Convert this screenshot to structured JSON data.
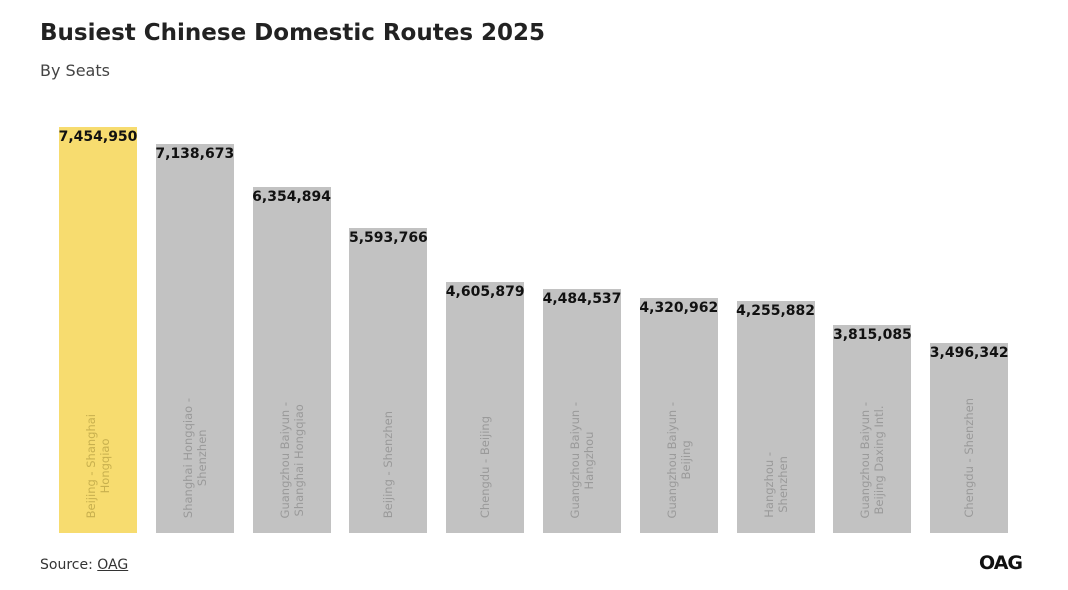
{
  "chart_data": {
    "type": "bar",
    "title": "Busiest Chinese Domestic Routes 2025",
    "subtitle": "By Seats",
    "categories": [
      "Beijing - Shanghai\nHongqiao",
      "Shanghai Hongqiao -\nShenzhen",
      "Guangzhou Baiyun -\nShanghai Hongqiao",
      "Beijing - Shenzhen",
      "Chengdu - Beijing",
      "Guangzhou Baiyun -\nHangzhou",
      "Guangzhou Baiyun -\nBeijing",
      "Hangzhou -\nShenzhen",
      "Guangzhou Baiyun -\nBeijing Daxing Intl.",
      "Chengdu - Shenzhen"
    ],
    "values": [
      7454950,
      7138673,
      6354894,
      5593766,
      4605879,
      4484537,
      4320962,
      4255882,
      3815085,
      3496342
    ],
    "value_labels": [
      "7,454,950",
      "7,138,673",
      "6,354,894",
      "5,593,766",
      "4,605,879",
      "4,484,537",
      "4,320,962",
      "4,255,882",
      "3,815,085",
      "3,496,342"
    ],
    "colors": [
      "#f7dc6f",
      "#c2c2c2",
      "#c2c2c2",
      "#c2c2c2",
      "#c2c2c2",
      "#c2c2c2",
      "#c2c2c2",
      "#c2c2c2",
      "#c2c2c2",
      "#c2c2c2"
    ],
    "label_colors": [
      "#c8b04e",
      "#9a9a9a",
      "#9a9a9a",
      "#9a9a9a",
      "#9a9a9a",
      "#9a9a9a",
      "#9a9a9a",
      "#9a9a9a",
      "#9a9a9a",
      "#9a9a9a"
    ]
  },
  "footer": {
    "source_label": "Source:",
    "source": "OAG",
    "logo": "OAG"
  }
}
